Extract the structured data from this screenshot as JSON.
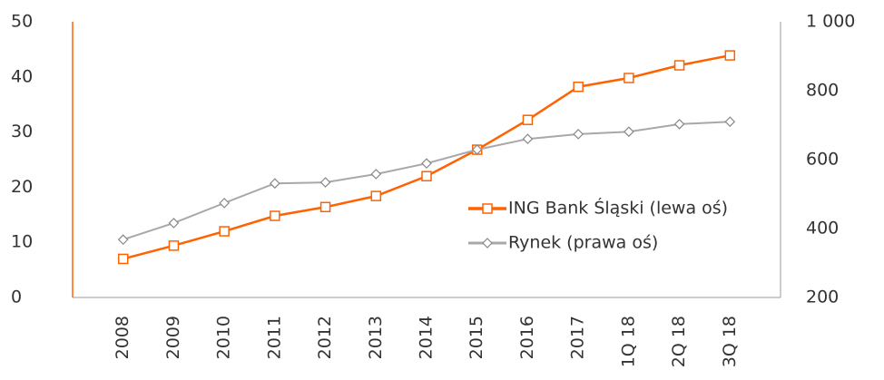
{
  "chart_data": {
    "type": "line",
    "categories": [
      "2008",
      "2009",
      "2010",
      "2011",
      "2012",
      "2013",
      "2014",
      "2015",
      "2016",
      "2017",
      "1Q 18",
      "2Q 18",
      "3Q 18"
    ],
    "series": [
      {
        "name": "ING Bank Śląski (lewa oś)",
        "color": "#ff6200",
        "values": [
          7.0,
          9.4,
          12.0,
          14.8,
          16.4,
          18.4,
          22.0,
          26.8,
          32.2,
          38.2,
          39.8,
          42.1,
          43.9
        ]
      },
      {
        "name": "Rynek (prawa oś)",
        "color": "#a8a8a8",
        "axis": "y2",
        "values": [
          368,
          416,
          474,
          531,
          534,
          558,
          589,
          629,
          660,
          674,
          681,
          703,
          710
        ]
      }
    ],
    "ylim": [
      0,
      50
    ],
    "yticks": [
      0,
      10,
      20,
      30,
      40,
      50
    ],
    "y2lim": [
      200,
      1000
    ],
    "y2ticks": [
      200,
      400,
      600,
      800,
      {
        "value": 1000,
        "label": "1 000"
      }
    ],
    "legend": "right"
  }
}
